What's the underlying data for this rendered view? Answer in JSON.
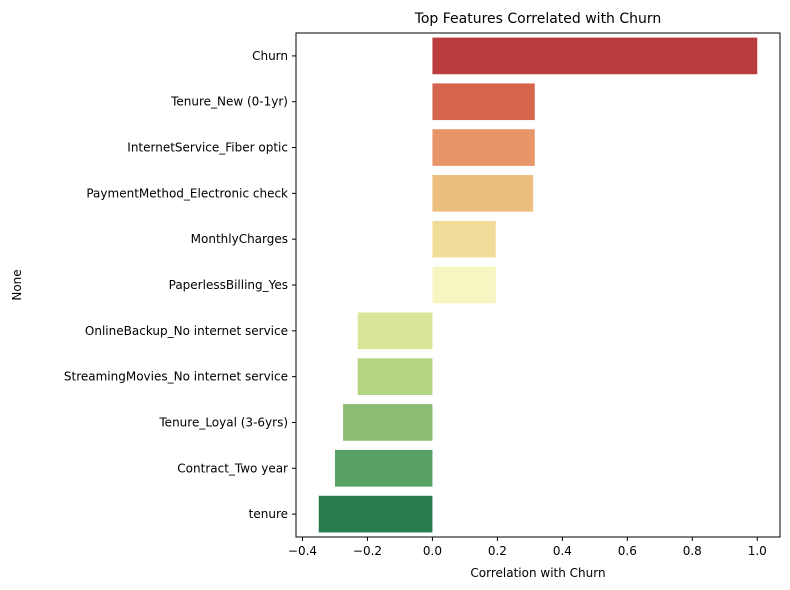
{
  "chart_data": {
    "type": "bar",
    "orientation": "horizontal",
    "title": "Top Features Correlated with Churn",
    "xlabel": "Correlation with Churn",
    "ylabel": "None",
    "xlim": [
      -0.42,
      1.07
    ],
    "xticks": [
      -0.4,
      -0.2,
      0.0,
      0.2,
      0.4,
      0.6,
      0.8,
      1.0
    ],
    "xtick_labels": [
      "−0.4",
      "−0.2",
      "0.0",
      "0.2",
      "0.4",
      "0.6",
      "0.8",
      "1.0"
    ],
    "grid": false,
    "legend": "none",
    "categories": [
      "Churn",
      "Tenure_New (0-1yr)",
      "InternetService_Fiber optic",
      "PaymentMethod_Electronic check",
      "MonthlyCharges",
      "PaperlessBilling_Yes",
      "OnlineBackup_No internet service",
      "StreamingMovies_No internet service",
      "Tenure_Loyal (3-6yrs)",
      "Contract_Two year",
      "tenure"
    ],
    "values": [
      1.0,
      0.315,
      0.315,
      0.31,
      0.195,
      0.195,
      -0.23,
      -0.23,
      -0.275,
      -0.3,
      -0.35
    ],
    "colors": [
      "#bb3c3d",
      "#d6654e",
      "#e8956a",
      "#ecbe7e",
      "#f1dd9a",
      "#f6f6c3",
      "#d9e697",
      "#b4d580",
      "#8bbe72",
      "#58a265",
      "#267d4b"
    ]
  }
}
